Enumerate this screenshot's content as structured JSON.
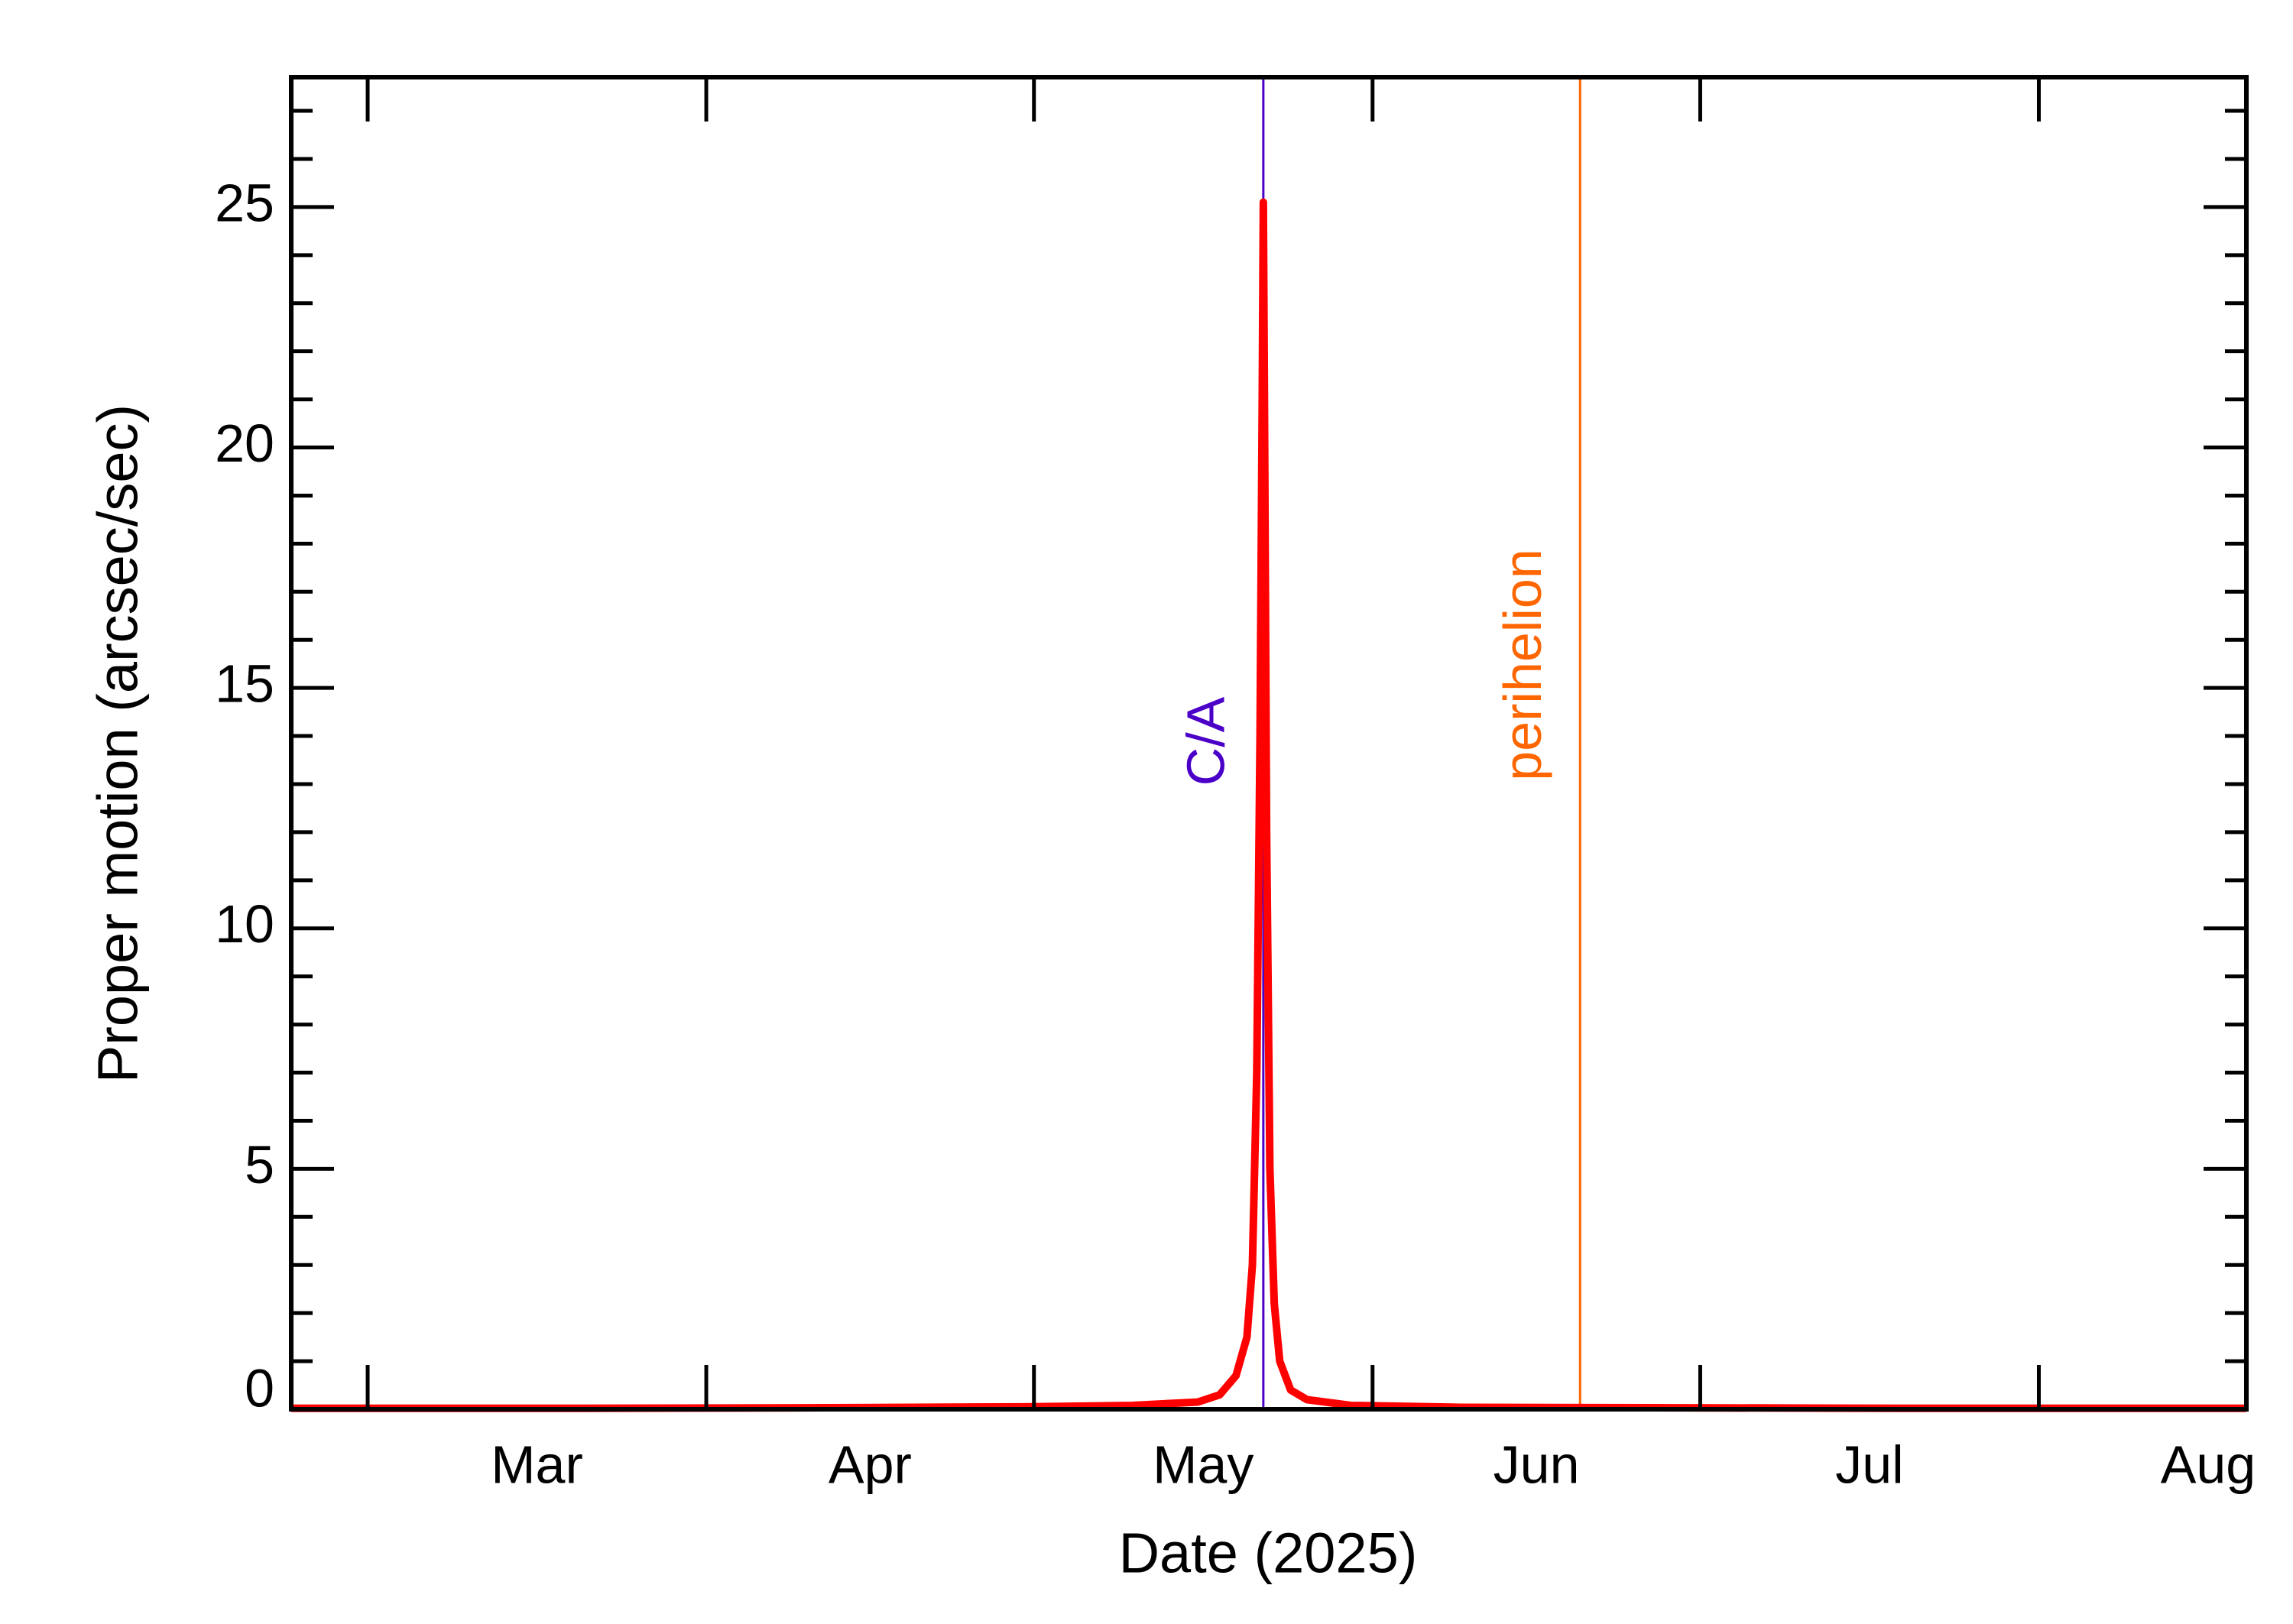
{
  "chart_data": {
    "type": "line",
    "xlabel": "Date (2025)",
    "ylabel": "Proper motion (arcsec/sec)",
    "x": [
      53,
      80,
      100,
      120,
      130,
      136,
      138,
      139.5,
      140.5,
      141,
      141.4,
      141.7,
      141.9,
      142,
      142.1,
      142.3,
      142.6,
      143,
      143.5,
      144.5,
      146,
      150,
      160,
      180,
      200,
      232
    ],
    "series": [
      {
        "color": "#ff0000",
        "values": [
          0.02,
          0.02,
          0.03,
          0.05,
          0.08,
          0.15,
          0.3,
          0.7,
          1.5,
          3,
          7,
          14,
          21,
          25.1,
          21,
          12,
          5,
          2.2,
          1,
          0.4,
          0.2,
          0.08,
          0.04,
          0.03,
          0.02,
          0.02
        ]
      }
    ],
    "xlim": [
      53,
      232
    ],
    "xticks": [
      {
        "value": 60,
        "label": "Mar"
      },
      {
        "value": 91,
        "label": "Apr"
      },
      {
        "value": 121,
        "label": "May"
      },
      {
        "value": 152,
        "label": "Jun"
      },
      {
        "value": 182,
        "label": "Jul"
      },
      {
        "value": 213,
        "label": "Aug"
      }
    ],
    "ylim": [
      0,
      27.7
    ],
    "yticks": [
      0,
      5,
      10,
      15,
      20,
      25
    ],
    "yminor_step": 1,
    "annotations": [
      {
        "text": "C/A",
        "x": 142,
        "color": "#4b00c8"
      },
      {
        "text": "perihelion",
        "x": 171,
        "color": "#ff6600"
      }
    ]
  }
}
